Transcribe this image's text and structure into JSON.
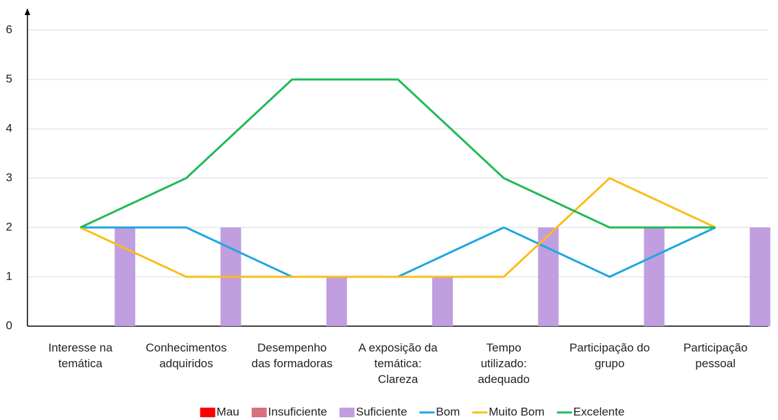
{
  "chart_data": {
    "type": "bar_line",
    "categories": [
      "Interesse na\ntemática",
      "Conhecimentos\nadquiridos",
      "Desempenho\ndas formadoras",
      "A exposição da\ntemática:\nClareza",
      "Tempo\nutilizado:\nadequado",
      "Participação do\ngrupo",
      "Participação\npessoal"
    ],
    "series": [
      {
        "name": "Mau",
        "kind": "bar",
        "color": "#ff0000",
        "values": [
          0,
          0,
          0,
          0,
          0,
          0,
          0
        ]
      },
      {
        "name": "Insuficiente",
        "kind": "bar",
        "color": "#d8707e",
        "values": [
          0,
          0,
          0,
          0,
          0,
          0,
          0
        ]
      },
      {
        "name": "Suficiente",
        "kind": "bar",
        "color": "#c09ee0",
        "values": [
          2,
          2,
          1,
          1,
          2,
          2,
          2
        ]
      },
      {
        "name": "Bom",
        "kind": "line",
        "color": "#1fa6e0",
        "values": [
          2,
          2,
          1,
          1,
          2,
          1,
          2
        ]
      },
      {
        "name": "Muito Bom",
        "kind": "line",
        "color": "#fbbd18",
        "values": [
          2,
          1,
          1,
          1,
          1,
          3,
          2
        ]
      },
      {
        "name": "Excelente",
        "kind": "line",
        "color": "#1fba57",
        "values": [
          2,
          3,
          5,
          5,
          3,
          2,
          2
        ]
      }
    ],
    "ylim": [
      0,
      6
    ],
    "yticks": [
      0,
      1,
      2,
      3,
      4,
      5,
      6
    ],
    "grid": true,
    "legend": "bottom"
  }
}
